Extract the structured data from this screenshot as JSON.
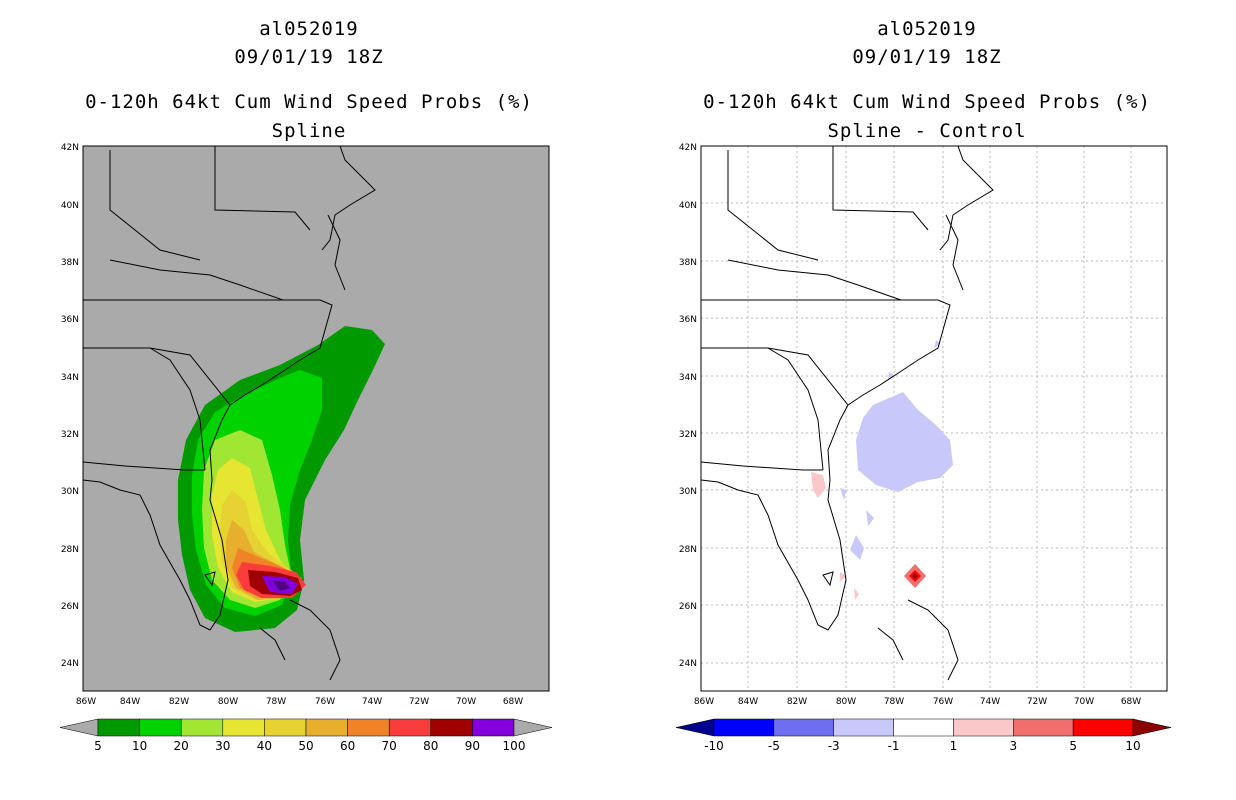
{
  "panels": [
    {
      "storm_id": "al052019",
      "datetime": "09/01/19 18Z",
      "product": "0-120h 64kt Cum Wind Speed Probs (%)",
      "subtitle": "Spline",
      "colorbar": {
        "labels": [
          "5",
          "10",
          "20",
          "30",
          "40",
          "50",
          "60",
          "70",
          "80",
          "90",
          "100"
        ],
        "colors": [
          "#009a00",
          "#00d200",
          "#a0e632",
          "#e6e632",
          "#e6d232",
          "#e6af2d",
          "#f08228",
          "#fa3c3c",
          "#a00000",
          "#8200dc"
        ],
        "under_color": "#aaaaaa",
        "over_color": "#aaaaaa"
      }
    },
    {
      "storm_id": "al052019",
      "datetime": "09/01/19 18Z",
      "product": "0-120h 64kt Cum Wind Speed Probs (%)",
      "subtitle": "Spline - Control",
      "colorbar": {
        "labels": [
          "-10",
          "-5",
          "-3",
          "-1",
          "1",
          "3",
          "5",
          "10"
        ],
        "colors": [
          "#0000ff",
          "#6e6ef0",
          "#c8c8fa",
          "#ffffff",
          "#fac8c8",
          "#f06e6e",
          "#ff0000"
        ],
        "under_color": "#00008c",
        "over_color": "#8c0000"
      }
    }
  ],
  "axes": {
    "lat_labels": [
      "24N",
      "26N",
      "28N",
      "30N",
      "32N",
      "34N",
      "36N",
      "38N",
      "40N",
      "42N"
    ],
    "lon_labels": [
      "86W",
      "84W",
      "82W",
      "80W",
      "78W",
      "76W",
      "74W",
      "72W",
      "70W",
      "68W"
    ]
  },
  "icons": {
    "storm_marker": "hurricane-probability-core"
  }
}
